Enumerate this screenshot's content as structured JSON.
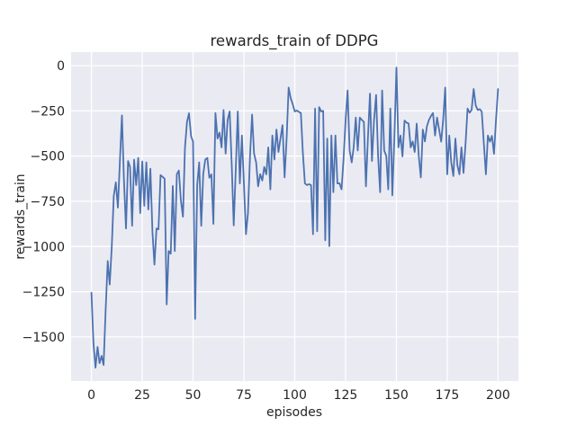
{
  "window_title": "rewards_train of DDPG",
  "chart_data": {
    "type": "line",
    "title": "rewards_train of DDPG",
    "xlabel": "episodes",
    "ylabel": "rewards_train",
    "legend_position": "none",
    "grid": true,
    "plot_bg": "#eaeaf2",
    "grid_color": "#ffffff",
    "line_color": "#4c72b0",
    "text_color": "#262626",
    "figure_bg": "#ffffff",
    "xlim": [
      -10,
      210
    ],
    "ylim": [
      -1744,
      75
    ],
    "xticks": [
      0,
      25,
      50,
      75,
      100,
      125,
      150,
      175,
      200
    ],
    "yticks": [
      0,
      -250,
      -500,
      -750,
      -1000,
      -1250,
      -1500
    ],
    "x_start": 0,
    "x_step": 1,
    "values": [
      -1255,
      -1530,
      -1670,
      -1555,
      -1645,
      -1605,
      -1655,
      -1350,
      -1080,
      -1210,
      -1000,
      -720,
      -645,
      -785,
      -530,
      -275,
      -630,
      -900,
      -527,
      -560,
      -885,
      -520,
      -660,
      -510,
      -815,
      -530,
      -775,
      -535,
      -795,
      -570,
      -920,
      -1100,
      -900,
      -905,
      -605,
      -615,
      -625,
      -1320,
      -1025,
      -1040,
      -665,
      -1025,
      -600,
      -580,
      -745,
      -835,
      -455,
      -310,
      -263,
      -390,
      -420,
      -1400,
      -660,
      -535,
      -885,
      -600,
      -519,
      -510,
      -620,
      -601,
      -875,
      -262,
      -403,
      -370,
      -452,
      -245,
      -486,
      -300,
      -253,
      -550,
      -883,
      -568,
      -253,
      -651,
      -386,
      -650,
      -932,
      -816,
      -500,
      -270,
      -486,
      -535,
      -667,
      -600,
      -635,
      -560,
      -601,
      -452,
      -684,
      -386,
      -519,
      -353,
      -477,
      -400,
      -328,
      -618,
      -400,
      -121,
      -180,
      -212,
      -253,
      -248,
      -255,
      -262,
      -480,
      -651,
      -660,
      -655,
      -660,
      -932,
      -237,
      -916,
      -229,
      -253,
      -250,
      -965,
      -403,
      -998,
      -386,
      -700,
      -386,
      -651,
      -650,
      -684,
      -519,
      -300,
      -137,
      -469,
      -535,
      -450,
      -287,
      -469,
      -287,
      -300,
      -310,
      -667,
      -400,
      -154,
      -527,
      -300,
      -162,
      -500,
      -700,
      -137,
      -469,
      -500,
      -684,
      -237,
      -717,
      -400,
      -10,
      -452,
      -386,
      -502,
      -303,
      -315,
      -320,
      -452,
      -419,
      -477,
      -320,
      -500,
      -618,
      -353,
      -419,
      -336,
      -300,
      -278,
      -262,
      -386,
      -287,
      -353,
      -420,
      -300,
      -121,
      -601,
      -386,
      -535,
      -610,
      -403,
      -550,
      -601,
      -452,
      -593,
      -430,
      -237,
      -260,
      -245,
      -129,
      -220,
      -245,
      -240,
      -255,
      -430,
      -601,
      -386,
      -420,
      -388,
      -487,
      -300,
      -129
    ]
  }
}
